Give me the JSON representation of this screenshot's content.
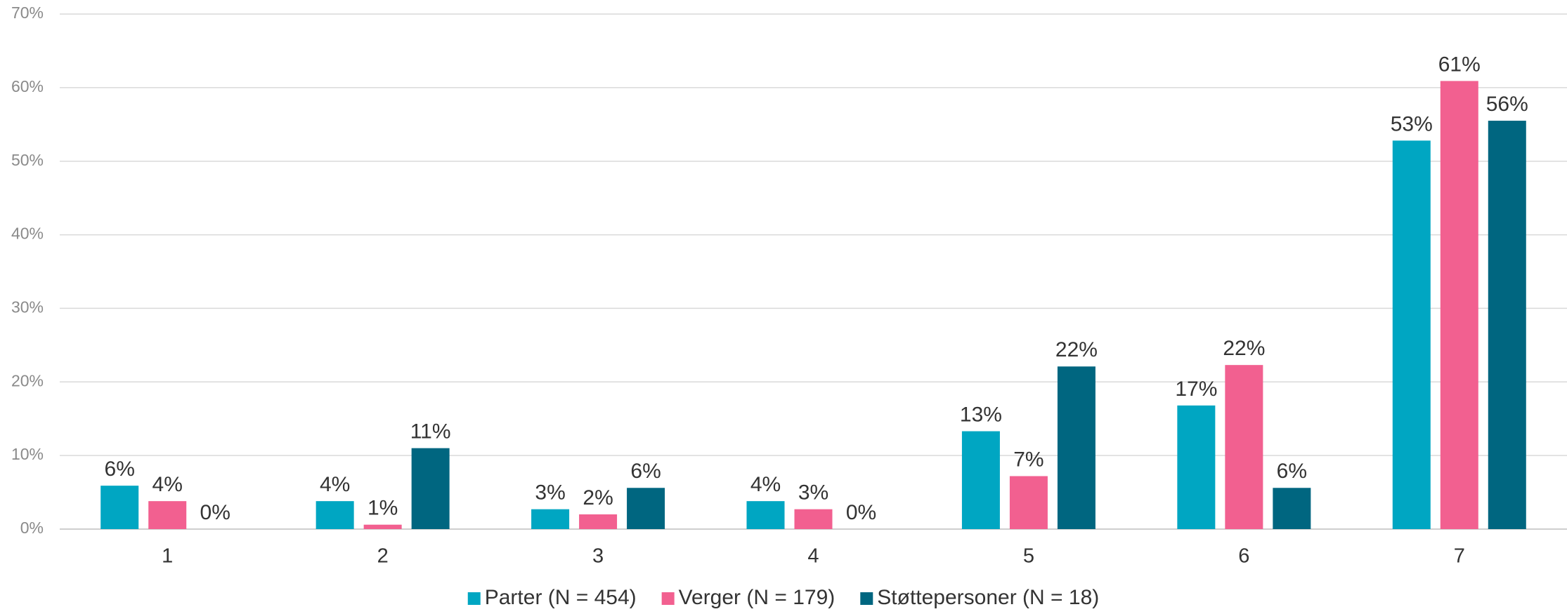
{
  "chart_data": {
    "type": "bar",
    "categories": [
      "1",
      "2",
      "3",
      "4",
      "5",
      "6",
      "7"
    ],
    "series": [
      {
        "name": "Parter (N = 454)",
        "color": "#00a6c2",
        "values": [
          5.9,
          3.8,
          2.7,
          3.8,
          13.3,
          16.8,
          52.8
        ],
        "value_labels": [
          "6%",
          "4%",
          "3%",
          "4%",
          "13%",
          "17%",
          "53%"
        ]
      },
      {
        "name": "Verger (N = 179)",
        "color": "#f26090",
        "values": [
          3.8,
          0.6,
          2.0,
          2.7,
          7.2,
          22.3,
          60.9
        ],
        "value_labels": [
          "4%",
          "1%",
          "2%",
          "3%",
          "7%",
          "22%",
          "61%"
        ]
      },
      {
        "name": "Støttepersoner (N = 18)",
        "color": "#006680",
        "values": [
          0,
          11.0,
          5.6,
          0,
          22.1,
          5.6,
          55.5
        ],
        "value_labels": [
          "0%",
          "11%",
          "6%",
          "0%",
          "22%",
          "6%",
          "56%"
        ]
      }
    ],
    "ylim": [
      0,
      70
    ],
    "yticks": [
      {
        "value": 0,
        "label": "0%"
      },
      {
        "value": 10,
        "label": "10%"
      },
      {
        "value": 20,
        "label": "20%"
      },
      {
        "value": 30,
        "label": "30%"
      },
      {
        "value": 40,
        "label": "40%"
      },
      {
        "value": 50,
        "label": "50%"
      },
      {
        "value": 60,
        "label": "60%"
      },
      {
        "value": 70,
        "label": "70%"
      }
    ],
    "grid": true,
    "legend": "bottom"
  }
}
